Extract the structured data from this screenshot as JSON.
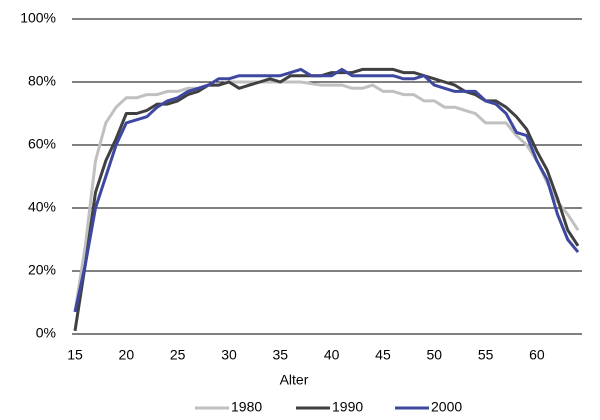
{
  "chart_data": {
    "type": "line",
    "x_label": "Alter",
    "x": [
      15,
      16,
      17,
      18,
      19,
      20,
      21,
      22,
      23,
      24,
      25,
      26,
      27,
      28,
      29,
      30,
      31,
      32,
      33,
      34,
      35,
      36,
      37,
      38,
      39,
      40,
      41,
      42,
      43,
      44,
      45,
      46,
      47,
      48,
      49,
      50,
      51,
      52,
      53,
      54,
      55,
      56,
      57,
      58,
      59,
      60,
      61,
      62,
      63,
      64
    ],
    "xlim": [
      15,
      64
    ],
    "xticks": [
      15,
      20,
      25,
      30,
      35,
      40,
      45,
      50,
      55,
      60
    ],
    "ylim": [
      0,
      100
    ],
    "yticks": [
      {
        "value": 0,
        "label": "0%"
      },
      {
        "value": 20,
        "label": "20%"
      },
      {
        "value": 40,
        "label": "40%"
      },
      {
        "value": 60,
        "label": "60%"
      },
      {
        "value": 80,
        "label": "80%"
      },
      {
        "value": 100,
        "label": "100%"
      }
    ],
    "grid": true,
    "legend": "bottom",
    "series": [
      {
        "name": "1980",
        "color": "#c0c0c0",
        "values": [
          7,
          28,
          55,
          67,
          72,
          75,
          75,
          76,
          76,
          77,
          77,
          78,
          78,
          79,
          79,
          80,
          80,
          80,
          80,
          80,
          80,
          80,
          80,
          79.5,
          79,
          79,
          79,
          78,
          78,
          79,
          77,
          77,
          76,
          76,
          74,
          74,
          72,
          72,
          71,
          70,
          67,
          67,
          67,
          63,
          60,
          55,
          48,
          42,
          38,
          33
        ]
      },
      {
        "name": "1990",
        "color": "#404040",
        "values": [
          1,
          22,
          45,
          55,
          62,
          70,
          70,
          71,
          73,
          73,
          74,
          76,
          77,
          79,
          79,
          80,
          78,
          79,
          80,
          81,
          80,
          82,
          82,
          82,
          82,
          83,
          83,
          83,
          84,
          84,
          84,
          84,
          83,
          83,
          82,
          81,
          80,
          79,
          77,
          76,
          74,
          74,
          72,
          69,
          65,
          58,
          52,
          43,
          33,
          28
        ]
      },
      {
        "name": "2000",
        "color": "#3f48a0",
        "values": [
          7,
          22,
          40,
          50,
          60,
          67,
          68,
          69,
          72,
          74,
          75,
          77,
          78,
          79,
          81,
          81,
          82,
          82,
          82,
          82,
          82,
          83,
          84,
          82,
          82,
          82,
          84,
          82,
          82,
          82,
          82,
          82,
          81,
          81,
          82,
          79,
          78,
          77,
          77,
          77,
          74,
          73,
          70,
          64,
          63,
          55,
          49,
          38,
          30,
          26
        ]
      }
    ]
  }
}
